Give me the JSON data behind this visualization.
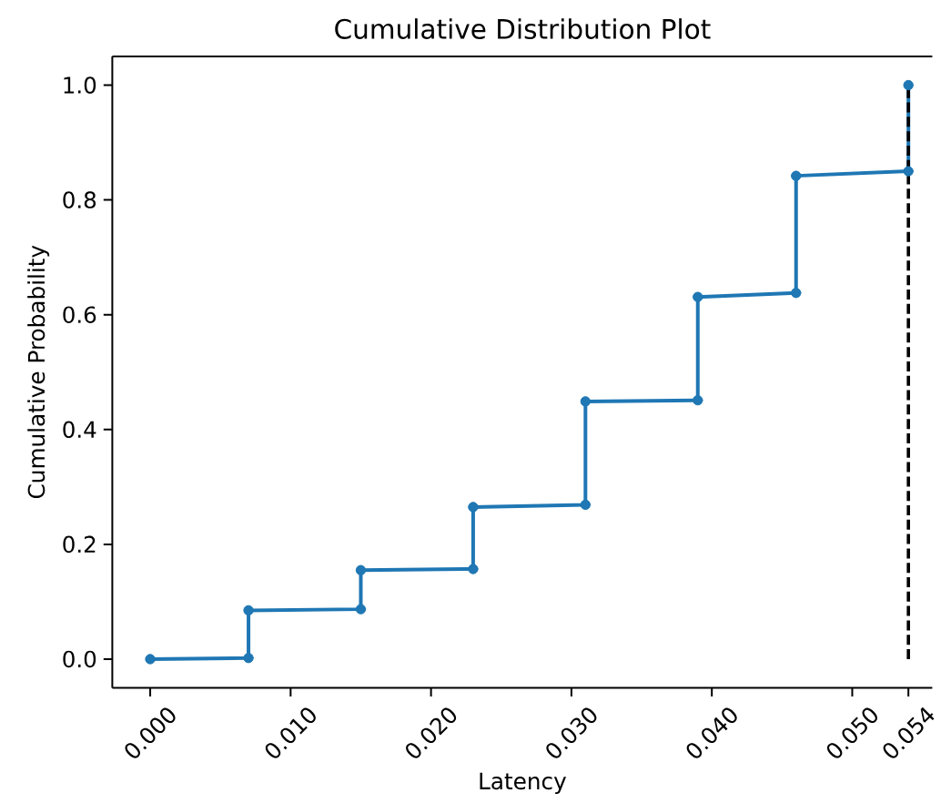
{
  "chart_data": {
    "type": "line",
    "title": "Cumulative Distribution Plot",
    "xlabel": "Latency",
    "ylabel": "Cumulative Probability",
    "x": [
      0,
      0.007,
      0.007,
      0.015,
      0.015,
      0.023,
      0.023,
      0.031,
      0.031,
      0.039,
      0.039,
      0.046,
      0.046,
      0.054,
      0.054
    ],
    "series": [
      {
        "color": "#1f77b4",
        "values": [
          0,
          0.002,
          0.085,
          0.087,
          0.155,
          0.157,
          0.265,
          0.269,
          0.449,
          0.451,
          0.631,
          0.638,
          0.842,
          0.85,
          1.0
        ]
      }
    ],
    "xlim": [
      -0.0027,
      0.0557
    ],
    "ylim": [
      -0.05,
      1.05
    ],
    "xticks": [
      {
        "value": 0,
        "label": "0.000"
      },
      {
        "value": 0.01,
        "label": "0.010"
      },
      {
        "value": 0.02,
        "label": "0.020"
      },
      {
        "value": 0.03,
        "label": "0.030"
      },
      {
        "value": 0.04,
        "label": "0.040"
      },
      {
        "value": 0.05,
        "label": "0.050"
      },
      {
        "value": 0.054,
        "label": "0.054"
      }
    ],
    "yticks": [
      {
        "value": 0,
        "label": "0.0"
      },
      0.2,
      0.4,
      0.6,
      0.8,
      {
        "value": 1,
        "label": "1.0"
      }
    ],
    "marker": "circle",
    "line_style": "solid",
    "ref_lines": [
      {
        "axis": "x",
        "value": 0.054,
        "color": "#000000",
        "line_style": "dashed"
      }
    ]
  }
}
